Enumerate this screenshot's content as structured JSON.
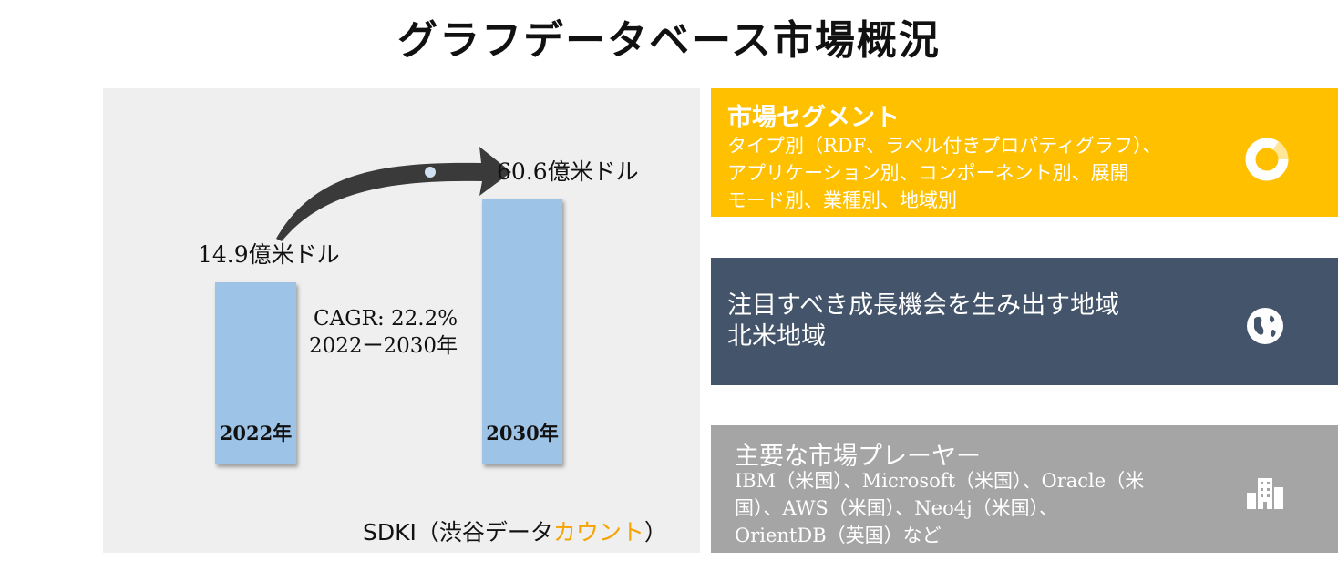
{
  "title": "グラフデータベース市場概況",
  "chart": {
    "bars": [
      {
        "year_label": "2022年",
        "value_label": "14.9億米ドル",
        "value": 14.9
      },
      {
        "year_label": "2030年",
        "value_label": "60.6億米ドル",
        "value": 60.6
      }
    ],
    "cagr_line1": "CAGR: 22.2%",
    "cagr_line2": "2022ー2030年",
    "bar_color": "#9dc3e6"
  },
  "source": {
    "prefix": "SDKI（渋谷データ",
    "accent": "カウント",
    "suffix": "）",
    "accent_color": "#f5a300"
  },
  "cards": {
    "segment": {
      "title": "市場セグメント",
      "lines": [
        "タイプ別（RDF、ラベル付きプロパティグラフ）、",
        "アプリケーション別、コンポーネント別、展開",
        "モード別、業種別、地域別"
      ],
      "icon": "donut-chart-icon",
      "color": "#ffc000"
    },
    "region": {
      "title": "注目すべき成長機会を生み出す地域",
      "value": "北米地域",
      "icon": "globe-icon",
      "color": "#44546a"
    },
    "players": {
      "title": "主要な市場プレーヤー",
      "lines": [
        "IBM（米国）、Microsoft（米国）、Oracle（米",
        "国）、AWS（米国）、Neo4j（米国）、",
        "OrientDB（英国）など"
      ],
      "icon": "buildings-icon",
      "color": "#a5a5a5"
    }
  }
}
